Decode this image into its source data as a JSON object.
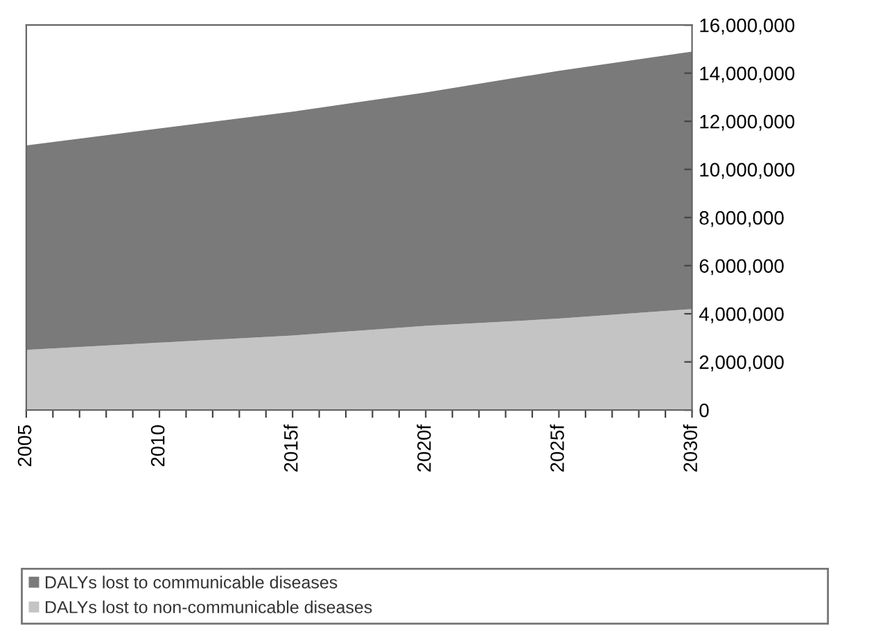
{
  "chart_data": {
    "type": "area",
    "stacked": true,
    "x": [
      2005,
      2010,
      2015,
      2020,
      2025,
      2030
    ],
    "series": [
      {
        "name": "DALYs lost to non-communicable diseases",
        "color": "#c4c4c4",
        "values": [
          2500000,
          2800000,
          3100000,
          3500000,
          3800000,
          4200000
        ]
      },
      {
        "name": "DALYs lost to communicable diseases",
        "color": "#7a7a7a",
        "values": [
          8500000,
          8900000,
          9300000,
          9700000,
          10300000,
          10700000
        ]
      }
    ],
    "xlim": [
      2005,
      2030
    ],
    "xticks": [
      {
        "value": 2005,
        "label": "2005"
      },
      {
        "value": 2006,
        "label": null
      },
      {
        "value": 2007,
        "label": null
      },
      {
        "value": 2008,
        "label": null
      },
      {
        "value": 2009,
        "label": null
      },
      {
        "value": 2010,
        "label": "2010"
      },
      {
        "value": 2011,
        "label": null
      },
      {
        "value": 2012,
        "label": null
      },
      {
        "value": 2013,
        "label": null
      },
      {
        "value": 2014,
        "label": null
      },
      {
        "value": 2015,
        "label": "2015f"
      },
      {
        "value": 2016,
        "label": null
      },
      {
        "value": 2017,
        "label": null
      },
      {
        "value": 2018,
        "label": null
      },
      {
        "value": 2019,
        "label": null
      },
      {
        "value": 2020,
        "label": "2020f"
      },
      {
        "value": 2021,
        "label": null
      },
      {
        "value": 2022,
        "label": null
      },
      {
        "value": 2023,
        "label": null
      },
      {
        "value": 2024,
        "label": null
      },
      {
        "value": 2025,
        "label": "2025f"
      },
      {
        "value": 2026,
        "label": null
      },
      {
        "value": 2027,
        "label": null
      },
      {
        "value": 2028,
        "label": null
      },
      {
        "value": 2029,
        "label": null
      },
      {
        "value": 2030,
        "label": "2030f"
      }
    ],
    "ylim": [
      0,
      16000000
    ],
    "yticks": [
      {
        "value": 0,
        "label": "0"
      },
      {
        "value": 2000000,
        "label": "2,000,000"
      },
      {
        "value": 4000000,
        "label": "4,000,000"
      },
      {
        "value": 6000000,
        "label": "6,000,000"
      },
      {
        "value": 8000000,
        "label": "8,000,000"
      },
      {
        "value": 10000000,
        "label": "10,000,000"
      },
      {
        "value": 12000000,
        "label": "12,000,000"
      },
      {
        "value": 14000000,
        "label": "14,000,000"
      },
      {
        "value": 16000000,
        "label": "16,000,000"
      }
    ],
    "grid": false,
    "legend": "bottom"
  }
}
